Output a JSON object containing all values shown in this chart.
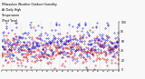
{
  "title": "Milwaukee Weather Outdoor Humidity At Daily High Temperature (Past Year)",
  "background_color": "#f8f8f8",
  "plot_bg_color": "#f8f8f8",
  "grid_color": "#aaaaaa",
  "blue_color": "#0000cc",
  "red_color": "#cc0000",
  "ylim": [
    0,
    100
  ],
  "n_points": 365,
  "seed": 42,
  "num_gridlines": 12,
  "title_fontsize": 2.5,
  "tick_fontsize": 2.2,
  "dot_size_blue": 0.5,
  "dot_size_red": 0.5
}
